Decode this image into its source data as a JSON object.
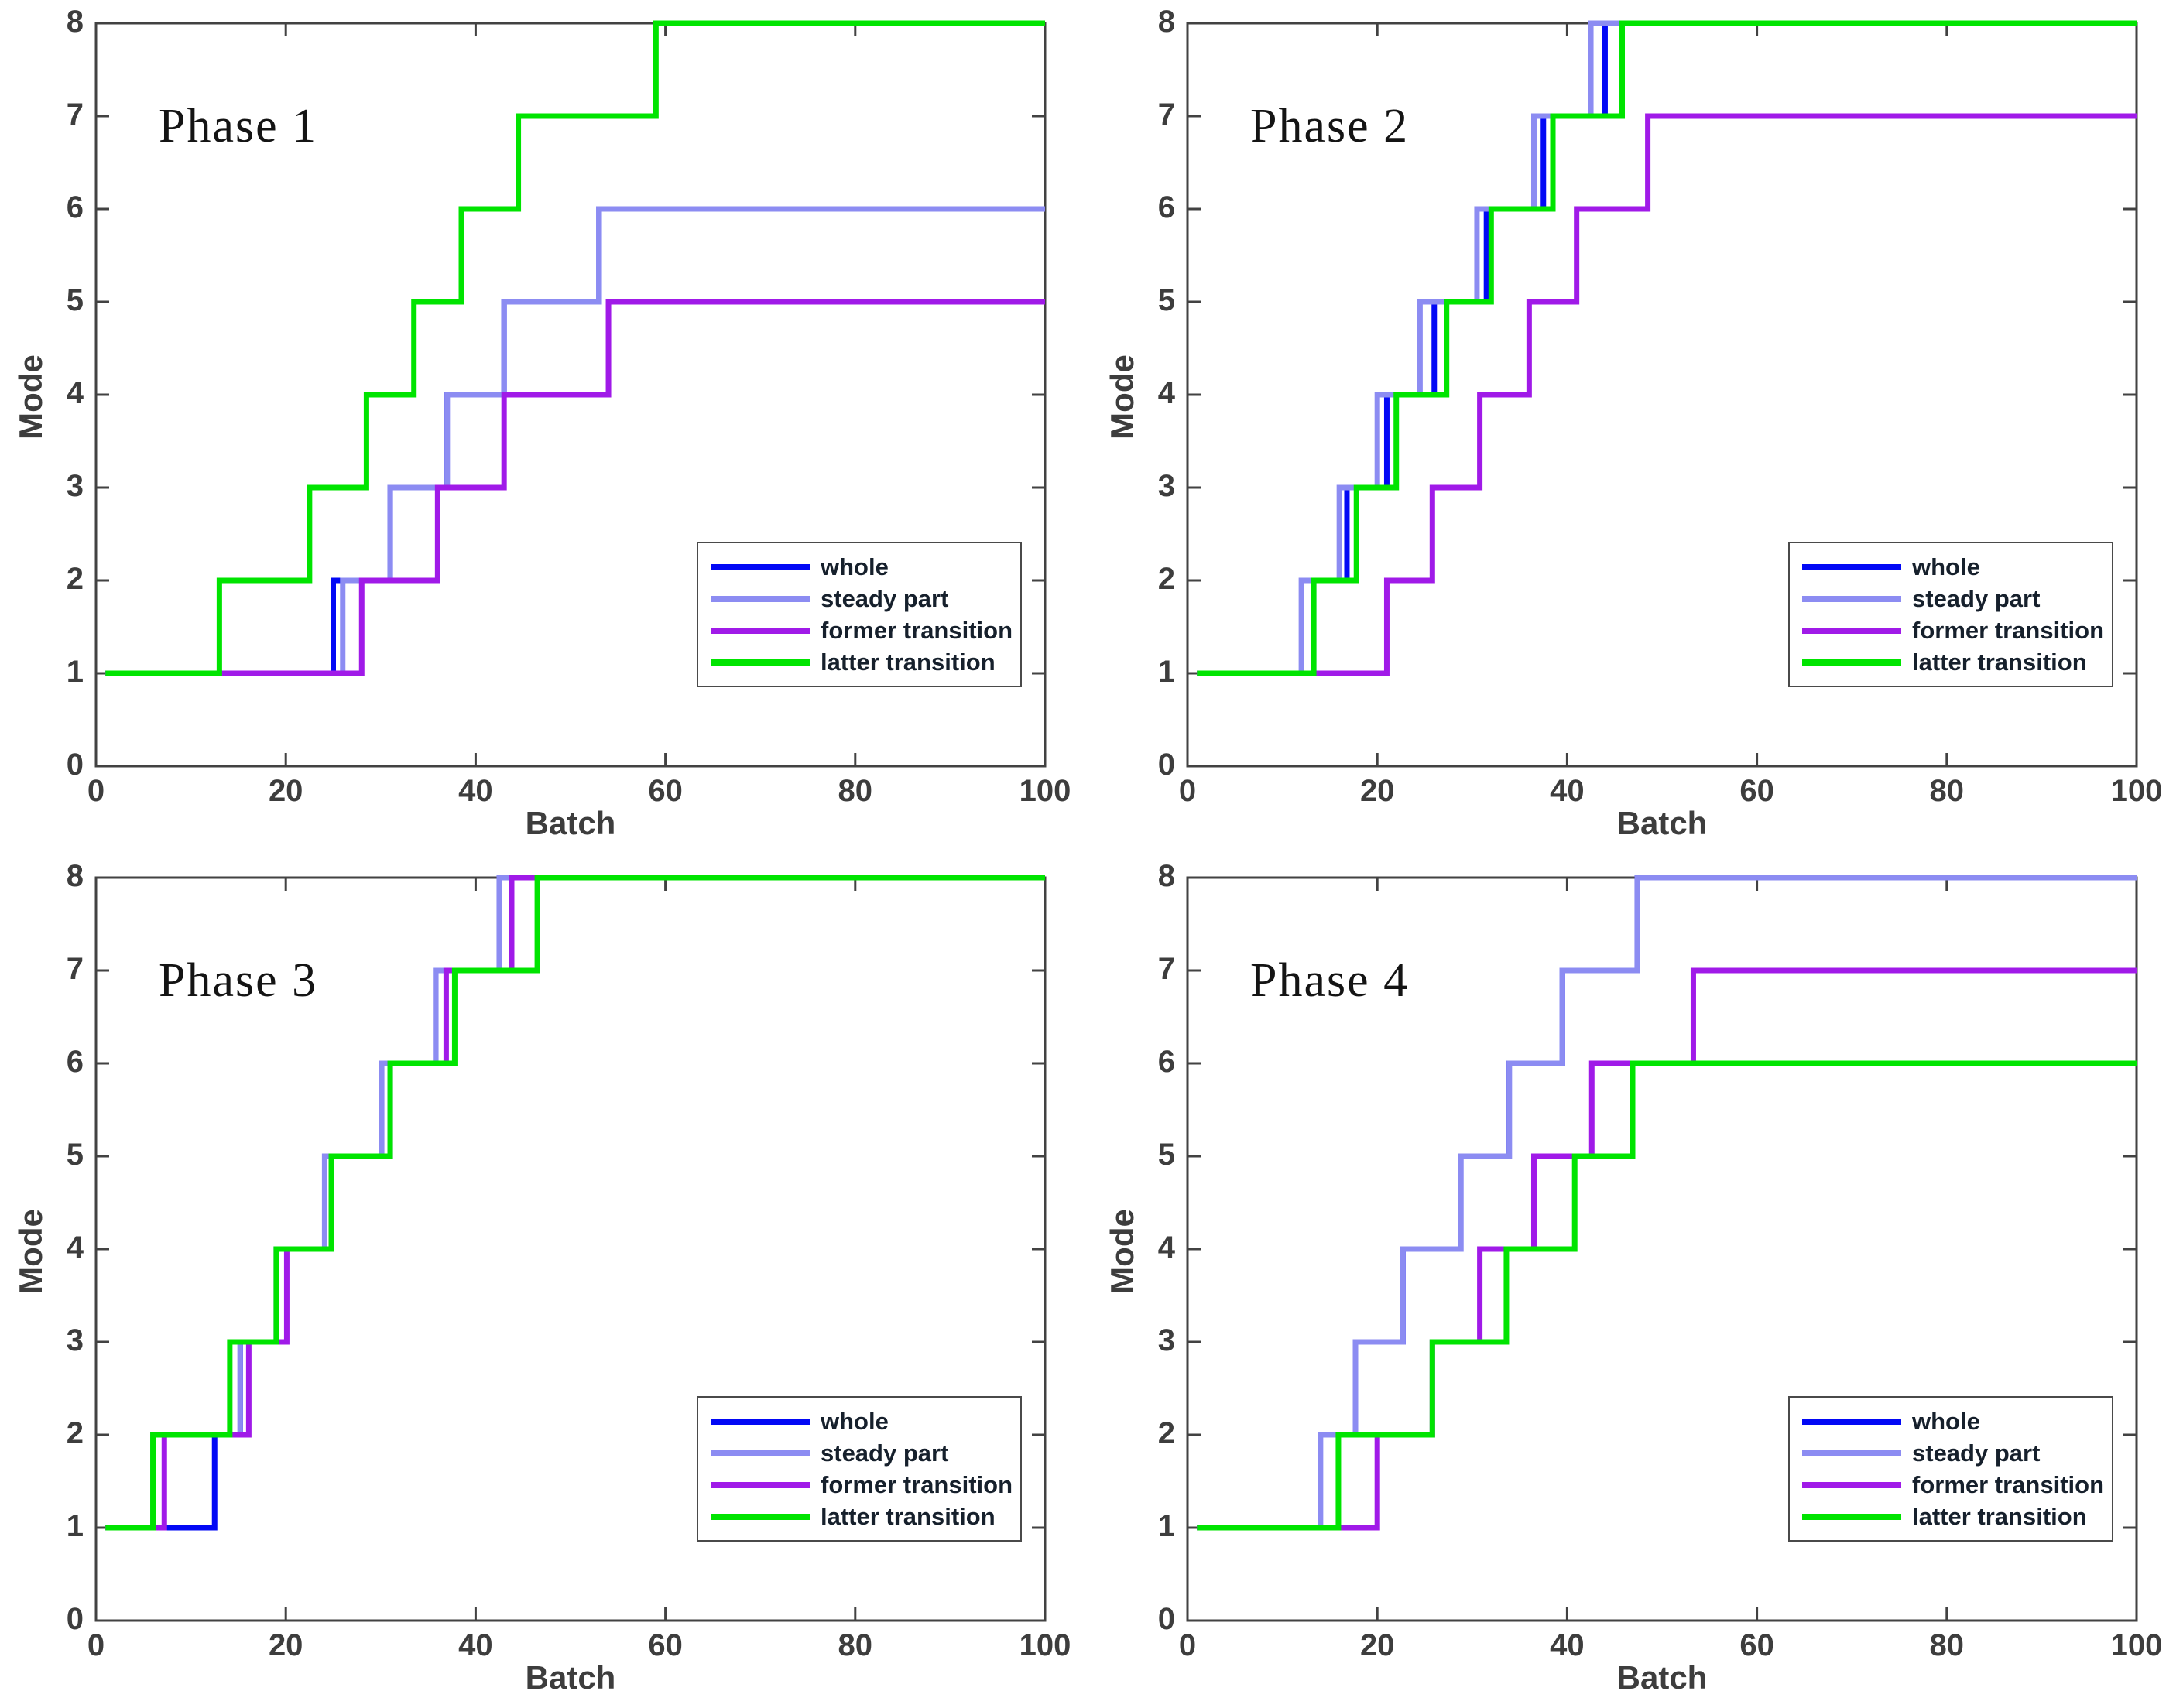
{
  "figure": {
    "background": "#ffffff",
    "axis_color": "#424242",
    "tick_label_color": "#3d3d3d",
    "legend": {
      "position": "lower right",
      "entries": [
        {
          "label": "whole",
          "color": "#0208f5"
        },
        {
          "label": "steady part",
          "color": "#8c8cf2"
        },
        {
          "label": "former transition",
          "color": "#a01ae8"
        },
        {
          "label": "latter transition",
          "color": "#00e400"
        }
      ]
    }
  },
  "chart_data": [
    {
      "type": "line",
      "subtype": "step",
      "title": "Phase 1",
      "xlabel": "Batch",
      "ylabel": "Mode",
      "xlim": [
        0,
        100
      ],
      "ylim": [
        0,
        8
      ],
      "xticks": [
        0,
        20,
        40,
        60,
        80,
        100
      ],
      "yticks": [
        0,
        1,
        2,
        3,
        4,
        5,
        6,
        7,
        8
      ],
      "grid": false,
      "series": [
        {
          "name": "whole",
          "color": "#0208f5",
          "final_mode": 6,
          "steps": [
            [
              1,
              1
            ],
            [
              25,
              2
            ],
            [
              31,
              3
            ],
            [
              37,
              4
            ],
            [
              43,
              5
            ],
            [
              53,
              6
            ]
          ]
        },
        {
          "name": "steady part",
          "color": "#8c8cf2",
          "final_mode": 6,
          "steps": [
            [
              1,
              1
            ],
            [
              26,
              2
            ],
            [
              31,
              3
            ],
            [
              37,
              4
            ],
            [
              43,
              5
            ],
            [
              53,
              6
            ]
          ]
        },
        {
          "name": "former transition",
          "color": "#a01ae8",
          "final_mode": 5,
          "steps": [
            [
              1,
              1
            ],
            [
              28,
              2
            ],
            [
              36,
              3
            ],
            [
              43,
              4
            ],
            [
              54,
              5
            ]
          ]
        },
        {
          "name": "latter transition",
          "color": "#00e400",
          "final_mode": 8,
          "steps": [
            [
              1,
              1
            ],
            [
              13,
              2
            ],
            [
              22.5,
              3
            ],
            [
              28.5,
              4
            ],
            [
              33.5,
              5
            ],
            [
              38.5,
              6
            ],
            [
              44.5,
              7
            ],
            [
              59,
              8
            ]
          ]
        }
      ]
    },
    {
      "type": "line",
      "subtype": "step",
      "title": "Phase 2",
      "xlabel": "Batch",
      "ylabel": "Mode",
      "xlim": [
        0,
        100
      ],
      "ylim": [
        0,
        8
      ],
      "xticks": [
        0,
        20,
        40,
        60,
        80,
        100
      ],
      "yticks": [
        0,
        1,
        2,
        3,
        4,
        5,
        6,
        7,
        8
      ],
      "grid": false,
      "series": [
        {
          "name": "whole",
          "color": "#0208f5",
          "final_mode": 8,
          "steps": [
            [
              1,
              1
            ],
            [
              13.3,
              2
            ],
            [
              16.8,
              3
            ],
            [
              21,
              4
            ],
            [
              26,
              5
            ],
            [
              31.5,
              6
            ],
            [
              37.5,
              7
            ],
            [
              44,
              8
            ]
          ]
        },
        {
          "name": "steady part",
          "color": "#8c8cf2",
          "final_mode": 8,
          "steps": [
            [
              1,
              1
            ],
            [
              12,
              2
            ],
            [
              16,
              3
            ],
            [
              20,
              4
            ],
            [
              24.5,
              5
            ],
            [
              30.5,
              6
            ],
            [
              36.5,
              7
            ],
            [
              42.5,
              8
            ]
          ]
        },
        {
          "name": "former transition",
          "color": "#a01ae8",
          "final_mode": 7,
          "steps": [
            [
              1,
              1
            ],
            [
              21,
              2
            ],
            [
              25.8,
              3
            ],
            [
              30.8,
              4
            ],
            [
              36,
              5
            ],
            [
              41,
              6
            ],
            [
              48.5,
              7
            ]
          ]
        },
        {
          "name": "latter transition",
          "color": "#00e400",
          "final_mode": 8,
          "steps": [
            [
              1,
              1
            ],
            [
              13.3,
              2
            ],
            [
              17.8,
              3
            ],
            [
              22,
              4
            ],
            [
              27.3,
              5
            ],
            [
              32,
              6
            ],
            [
              38.5,
              7
            ],
            [
              45.8,
              8
            ]
          ]
        }
      ]
    },
    {
      "type": "line",
      "subtype": "step",
      "title": "Phase 3",
      "xlabel": "Batch",
      "ylabel": "Mode",
      "xlim": [
        0,
        100
      ],
      "ylim": [
        0,
        8
      ],
      "xticks": [
        0,
        20,
        40,
        60,
        80,
        100
      ],
      "yticks": [
        0,
        1,
        2,
        3,
        4,
        5,
        6,
        7,
        8
      ],
      "grid": false,
      "series": [
        {
          "name": "whole",
          "color": "#0208f5",
          "final_mode": 8,
          "steps": [
            [
              1,
              1
            ],
            [
              12.5,
              2
            ],
            [
              15.2,
              3
            ],
            [
              19,
              4
            ],
            [
              24.1,
              5
            ],
            [
              30.1,
              6
            ],
            [
              35.8,
              7
            ],
            [
              42.5,
              8
            ]
          ]
        },
        {
          "name": "steady part",
          "color": "#8c8cf2",
          "final_mode": 8,
          "steps": [
            [
              1,
              1
            ],
            [
              6,
              2
            ],
            [
              15.2,
              3
            ],
            [
              19,
              4
            ],
            [
              24.1,
              5
            ],
            [
              30.1,
              6
            ],
            [
              35.8,
              7
            ],
            [
              42.5,
              8
            ]
          ]
        },
        {
          "name": "former transition",
          "color": "#a01ae8",
          "final_mode": 8,
          "steps": [
            [
              1,
              1
            ],
            [
              7.2,
              2
            ],
            [
              16.1,
              3
            ],
            [
              20.1,
              4
            ],
            [
              24.8,
              5
            ],
            [
              31,
              6
            ],
            [
              36.9,
              7
            ],
            [
              43.8,
              8
            ]
          ]
        },
        {
          "name": "latter transition",
          "color": "#00e400",
          "final_mode": 8,
          "steps": [
            [
              1,
              1
            ],
            [
              6,
              2
            ],
            [
              14.1,
              3
            ],
            [
              19,
              4
            ],
            [
              24.8,
              5
            ],
            [
              31,
              6
            ],
            [
              37.8,
              7
            ],
            [
              46.5,
              8
            ]
          ]
        }
      ]
    },
    {
      "type": "line",
      "subtype": "step",
      "title": "Phase 4",
      "xlabel": "Batch",
      "ylabel": "Mode",
      "xlim": [
        0,
        100
      ],
      "ylim": [
        0,
        8
      ],
      "xticks": [
        0,
        20,
        40,
        60,
        80,
        100
      ],
      "yticks": [
        0,
        1,
        2,
        3,
        4,
        5,
        6,
        7,
        8
      ],
      "grid": false,
      "series": [
        {
          "name": "whole",
          "color": "#0208f5",
          "final_mode": 8,
          "steps": [
            [
              1,
              1
            ],
            [
              14,
              2
            ],
            [
              17.7,
              3
            ],
            [
              22.7,
              4
            ],
            [
              28.8,
              5
            ],
            [
              33.9,
              6
            ],
            [
              39.5,
              7
            ],
            [
              47.4,
              8
            ]
          ]
        },
        {
          "name": "steady part",
          "color": "#8c8cf2",
          "final_mode": 8,
          "steps": [
            [
              1,
              1
            ],
            [
              14,
              2
            ],
            [
              17.7,
              3
            ],
            [
              22.7,
              4
            ],
            [
              28.8,
              5
            ],
            [
              33.9,
              6
            ],
            [
              39.5,
              7
            ],
            [
              47.4,
              8
            ]
          ]
        },
        {
          "name": "former transition",
          "color": "#a01ae8",
          "final_mode": 7,
          "steps": [
            [
              1,
              1
            ],
            [
              20,
              2
            ],
            [
              25.8,
              3
            ],
            [
              30.8,
              4
            ],
            [
              36.5,
              5
            ],
            [
              42.6,
              6
            ],
            [
              53.3,
              7
            ]
          ]
        },
        {
          "name": "latter transition",
          "color": "#00e400",
          "final_mode": 6,
          "steps": [
            [
              1,
              1
            ],
            [
              15.9,
              2
            ],
            [
              25.8,
              3
            ],
            [
              33.6,
              4
            ],
            [
              40.8,
              5
            ],
            [
              46.9,
              6
            ]
          ]
        }
      ]
    }
  ]
}
